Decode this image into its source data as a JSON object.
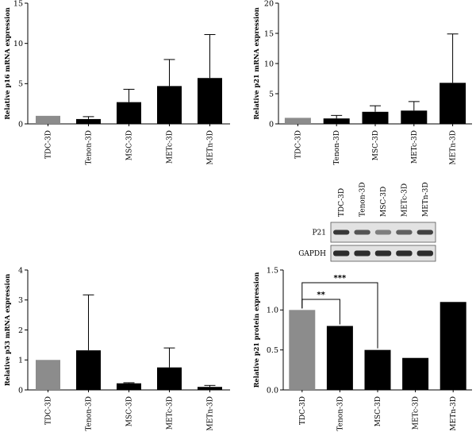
{
  "colors": {
    "control": "#8c8c8c",
    "treated": "#000000",
    "band": "#1a1a1a",
    "blot_bg": "#e2e2e2"
  },
  "chart_data": [
    {
      "type": "bar",
      "categories": [
        "TDC-3D",
        "Tenon-3D",
        "MSC-3D",
        "METc-3D",
        "METn-3D"
      ],
      "values": [
        1.0,
        0.6,
        2.7,
        4.7,
        5.7
      ],
      "errors": [
        0,
        0.3,
        1.6,
        3.3,
        5.4
      ],
      "ylabel": "Relative p16 mRNA expression",
      "ylim": [
        0,
        15
      ],
      "yticks": [
        0,
        5,
        10,
        15
      ],
      "annotations": []
    },
    {
      "type": "bar",
      "categories": [
        "TDC-3D",
        "Tenon-3D",
        "MSC-3D",
        "METc-3D",
        "METn-3D"
      ],
      "values": [
        1.0,
        0.9,
        2.0,
        2.2,
        6.8
      ],
      "errors": [
        0,
        0.5,
        1.0,
        1.5,
        8.1
      ],
      "ylabel": "Relative p21 mRNA expression",
      "ylim": [
        0,
        20
      ],
      "yticks": [
        0,
        5,
        10,
        15,
        20
      ],
      "annotations": []
    },
    {
      "type": "bar",
      "categories": [
        "TDC-3D",
        "Tenon-3D",
        "MSC-3D",
        "METc-3D",
        "METn-3D"
      ],
      "values": [
        1.0,
        1.32,
        0.22,
        0.75,
        0.1
      ],
      "errors": [
        0,
        1.85,
        0.02,
        0.65,
        0.05
      ],
      "ylabel": "Relative p53 mRNA expression",
      "ylim": [
        0,
        4
      ],
      "yticks": [
        0,
        1,
        2,
        3,
        4
      ],
      "annotations": []
    },
    {
      "type": "bar",
      "categories": [
        "TDC-3D",
        "Tenon-3D",
        "MSC-3D",
        "METc-3D",
        "METn-3D"
      ],
      "values": [
        1.0,
        0.8,
        0.5,
        0.4,
        1.1
      ],
      "errors": [
        0,
        0,
        0,
        0,
        0
      ],
      "ylabel": "Relative p21 protein expression",
      "ylim": [
        0,
        1.5
      ],
      "yticks": [
        "0.0",
        "0.5",
        "1.0",
        "1.5"
      ],
      "annotations": [
        {
          "from": 0,
          "to": 1,
          "label": "**"
        },
        {
          "from": 0,
          "to": 2,
          "label": "***"
        }
      ]
    }
  ],
  "blot": {
    "lanes": [
      "TDC-3D",
      "Tenon-3D",
      "MSC-3D",
      "METc-3D",
      "METn-3D"
    ],
    "rows": [
      {
        "label": "P21",
        "intensity": [
          0.85,
          0.7,
          0.5,
          0.65,
          0.8
        ]
      },
      {
        "label": "GAPDH",
        "intensity": [
          0.9,
          0.9,
          0.9,
          0.9,
          0.9
        ]
      }
    ]
  }
}
